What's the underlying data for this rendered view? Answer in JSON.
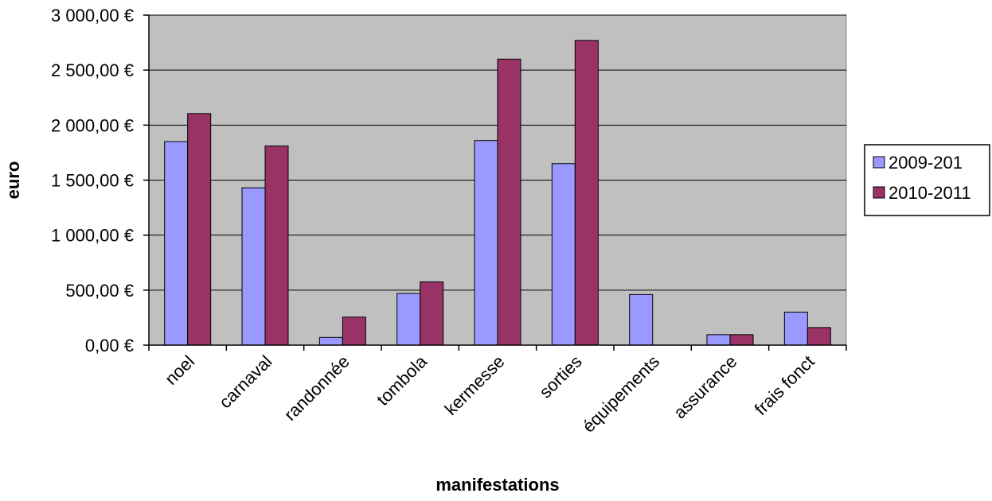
{
  "chart_data": {
    "type": "bar",
    "title": "",
    "xlabel": "manifestations",
    "ylabel": "euro",
    "categories": [
      "noel",
      "carnaval",
      "randonnée",
      "tombola",
      "kermesse",
      "sorties",
      "équipements",
      "assurance",
      "frais fonct"
    ],
    "series": [
      {
        "name": "2009-201",
        "color": "#9999ff",
        "values": [
          1850,
          1430,
          70,
          470,
          1860,
          1650,
          460,
          95,
          300
        ]
      },
      {
        "name": "2010-2011",
        "color": "#993366",
        "values": [
          2105,
          1810,
          255,
          575,
          2600,
          2770,
          0,
          95,
          160
        ]
      }
    ],
    "ylim": [
      0,
      3000
    ],
    "yticks": [
      0,
      500,
      1000,
      1500,
      2000,
      2500,
      3000
    ],
    "ytick_labels": [
      "0,00 €",
      "500,00 €",
      "1 000,00 €",
      "1 500,00 €",
      "2 000,00 €",
      "2 500,00 €",
      "3 000,00 €"
    ],
    "grid": true,
    "plot_background": "#c0c0c0",
    "legend_position": "right"
  }
}
